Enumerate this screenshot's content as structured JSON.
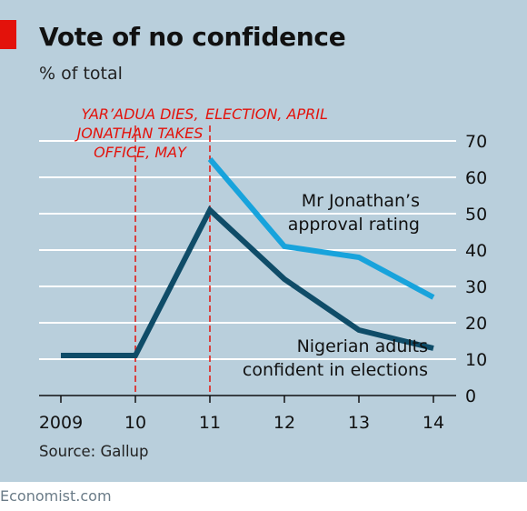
{
  "title": "Vote of no confidence",
  "subtitle": "% of total",
  "source": "Source: Gallup",
  "brand": "Economist.com",
  "colors": {
    "accent": "#e3120b",
    "panel": "#b9cfdc",
    "series_dark": "#0f4c68",
    "series_light": "#18a3dc"
  },
  "chart_data": {
    "type": "line",
    "x": [
      2009,
      2010,
      2011,
      2012,
      2013,
      2014
    ],
    "x_tick_labels": [
      "2009",
      "10",
      "11",
      "12",
      "13",
      "14"
    ],
    "y_tick_labels": [
      "0",
      "10",
      "20",
      "30",
      "40",
      "50",
      "60",
      "70"
    ],
    "ylim": [
      0,
      70
    ],
    "grid": true,
    "y_axis_side": "right",
    "series": [
      {
        "name": "Nigerian adults confident in elections",
        "label_lines": [
          "Nigerian adults",
          "confident in elections"
        ],
        "color": "#0f4c68",
        "x": [
          2009,
          2010,
          2011,
          2012,
          2013,
          2014
        ],
        "values": [
          11,
          11,
          51,
          32,
          18,
          13
        ]
      },
      {
        "name": "Mr Jonathan's approval rating",
        "label_lines": [
          "Mr Jonathan’s",
          "approval rating"
        ],
        "color": "#18a3dc",
        "x": [
          2011,
          2012,
          2013,
          2014
        ],
        "values": [
          65,
          41,
          38,
          27
        ]
      }
    ],
    "annotations": [
      {
        "x": 2010,
        "lines": [
          "YAR’ADUA DIES,",
          "JONATHAN TAKES",
          "OFFICE, MAY"
        ]
      },
      {
        "x": 2011,
        "lines": [
          "ELECTION, APRIL"
        ]
      }
    ]
  }
}
